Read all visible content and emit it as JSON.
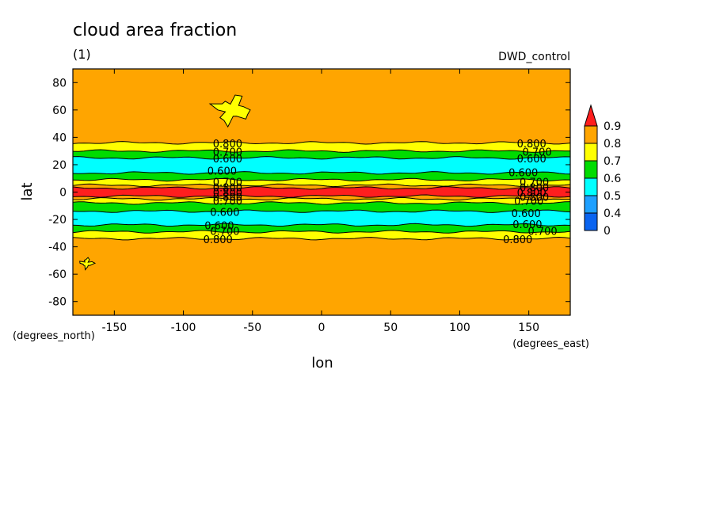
{
  "chart_data": {
    "type": "heatmap",
    "title": "cloud area fraction",
    "subtitle": "(1)",
    "dataset_label": "DWD_control",
    "xlabel": "lon",
    "ylabel": "lat",
    "x_units": "(degrees_east)",
    "y_units": "(degrees_north)",
    "xlim": [
      -180,
      180
    ],
    "ylim": [
      -90,
      90
    ],
    "x_ticks": [
      -150,
      -100,
      -50,
      0,
      50,
      100,
      150
    ],
    "y_ticks": [
      -80,
      -60,
      -40,
      -20,
      0,
      20,
      40,
      60,
      80
    ],
    "colorbar": {
      "levels": [
        "0",
        "0.4",
        "0.5",
        "0.6",
        "0.7",
        "0.8",
        "0.9"
      ],
      "colors": [
        "#0a64f0",
        "#1ea0ff",
        "#00ffff",
        "#00dc00",
        "#ffff00",
        "#ffa500",
        "#ff1e1e"
      ],
      "extend": "max"
    },
    "zonal_bands": [
      {
        "lat_from": 90,
        "lat_to": 36,
        "value": 0.82
      },
      {
        "lat_from": 36,
        "lat_to": 30,
        "value": 0.75
      },
      {
        "lat_from": 30,
        "lat_to": 25,
        "value": 0.65
      },
      {
        "lat_from": 25,
        "lat_to": 14,
        "value": 0.55
      },
      {
        "lat_from": 14,
        "lat_to": 9,
        "value": 0.65
      },
      {
        "lat_from": 9,
        "lat_to": 5,
        "value": 0.75
      },
      {
        "lat_from": 5,
        "lat_to": 3,
        "value": 0.85
      },
      {
        "lat_from": 3,
        "lat_to": -3,
        "value": 0.92
      },
      {
        "lat_from": -3,
        "lat_to": -5,
        "value": 0.85
      },
      {
        "lat_from": -5,
        "lat_to": -8,
        "value": 0.75
      },
      {
        "lat_from": -8,
        "lat_to": -14,
        "value": 0.65
      },
      {
        "lat_from": -14,
        "lat_to": -24,
        "value": 0.55
      },
      {
        "lat_from": -24,
        "lat_to": -29,
        "value": 0.65
      },
      {
        "lat_from": -29,
        "lat_to": -34,
        "value": 0.75
      },
      {
        "lat_from": -34,
        "lat_to": -90,
        "value": 0.82
      }
    ],
    "patches": [
      {
        "lon": -65,
        "lat": 60,
        "value": 0.75
      },
      {
        "lon": -170,
        "lat": -52,
        "value": 0.75
      }
    ],
    "contour_labels": [
      {
        "text": "0.800",
        "lon": -68,
        "lat": 35
      },
      {
        "text": "0.700",
        "lon": -68,
        "lat": 29
      },
      {
        "text": "0.600",
        "lon": -68,
        "lat": 24
      },
      {
        "text": "0.600",
        "lon": -72,
        "lat": 15
      },
      {
        "text": "0.700",
        "lon": -68,
        "lat": 7
      },
      {
        "text": "0.800",
        "lon": -68,
        "lat": 3
      },
      {
        "text": "0.800",
        "lon": -68,
        "lat": -1
      },
      {
        "text": "0.800",
        "lon": -68,
        "lat": -4
      },
      {
        "text": "0.700",
        "lon": -68,
        "lat": -7
      },
      {
        "text": "0.600",
        "lon": -70,
        "lat": -15
      },
      {
        "text": "0.600",
        "lon": -74,
        "lat": -25
      },
      {
        "text": "0.700",
        "lon": -70,
        "lat": -29
      },
      {
        "text": "0.800",
        "lon": -75,
        "lat": -35
      },
      {
        "text": "0.800",
        "lon": 152,
        "lat": 35
      },
      {
        "text": "0.700",
        "lon": 156,
        "lat": 29
      },
      {
        "text": "0.600",
        "lon": 152,
        "lat": 24
      },
      {
        "text": "0.600",
        "lon": 146,
        "lat": 14
      },
      {
        "text": "0.700",
        "lon": 154,
        "lat": 7
      },
      {
        "text": "0.800",
        "lon": 154,
        "lat": 3
      },
      {
        "text": "0.800",
        "lon": 152,
        "lat": -1
      },
      {
        "text": "0.800",
        "lon": 154,
        "lat": -4
      },
      {
        "text": "0.700",
        "lon": 150,
        "lat": -7
      },
      {
        "text": "0.600",
        "lon": 148,
        "lat": -16
      },
      {
        "text": "0.600",
        "lon": 149,
        "lat": -24
      },
      {
        "text": "0.700",
        "lon": 160,
        "lat": -29
      },
      {
        "text": "0.800",
        "lon": 142,
        "lat": -35
      }
    ]
  }
}
